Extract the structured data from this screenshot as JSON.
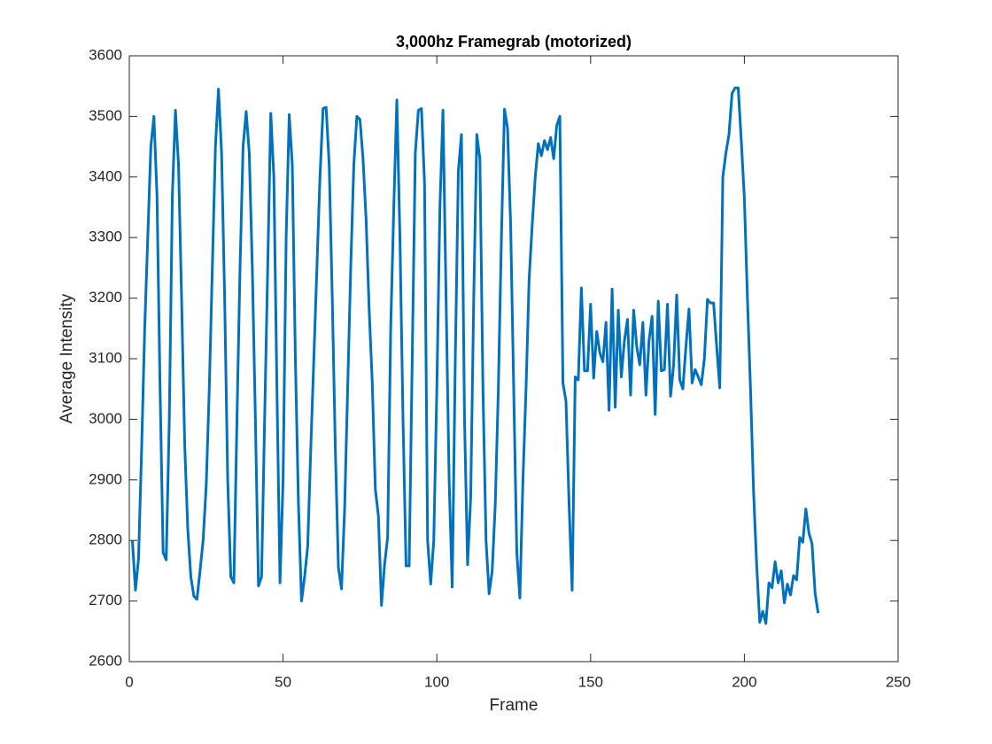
{
  "chart_data": {
    "type": "line",
    "title": "3,000hz Framegrab (motorized)",
    "x_label": "Frame",
    "y_label": "Average Intensity",
    "xlim": [
      0,
      250
    ],
    "xticks": [
      0,
      50,
      100,
      150,
      200,
      250
    ],
    "ylim": [
      2600,
      3600
    ],
    "yticks": [
      2600,
      2700,
      2800,
      2900,
      3000,
      3100,
      3200,
      3300,
      3400,
      3500,
      3600
    ],
    "grid": false,
    "x": [
      1,
      2,
      3,
      4,
      5,
      6,
      7,
      8,
      9,
      10,
      11,
      12,
      13,
      14,
      15,
      16,
      17,
      18,
      19,
      20,
      21,
      22,
      23,
      24,
      25,
      26,
      27,
      28,
      29,
      30,
      31,
      32,
      33,
      34,
      35,
      36,
      37,
      38,
      39,
      40,
      41,
      42,
      43,
      44,
      45,
      46,
      47,
      48,
      49,
      50,
      51,
      52,
      53,
      54,
      55,
      56,
      57,
      58,
      59,
      60,
      61,
      62,
      63,
      64,
      65,
      66,
      67,
      68,
      69,
      70,
      71,
      72,
      73,
      74,
      75,
      76,
      77,
      78,
      79,
      80,
      81,
      82,
      83,
      84,
      85,
      86,
      87,
      88,
      89,
      90,
      91,
      92,
      93,
      94,
      95,
      96,
      97,
      98,
      99,
      100,
      101,
      102,
      103,
      104,
      105,
      106,
      107,
      108,
      109,
      110,
      111,
      112,
      113,
      114,
      115,
      116,
      117,
      118,
      119,
      120,
      121,
      122,
      123,
      124,
      125,
      126,
      127,
      128,
      129,
      130,
      131,
      132,
      133,
      134,
      135,
      136,
      137,
      138,
      139,
      140,
      141,
      142,
      143,
      144,
      145,
      146,
      147,
      148,
      149,
      150,
      151,
      152,
      153,
      154,
      155,
      156,
      157,
      158,
      159,
      160,
      161,
      162,
      163,
      164,
      165,
      166,
      167,
      168,
      169,
      170,
      171,
      172,
      173,
      174,
      175,
      176,
      177,
      178,
      179,
      180,
      181,
      182,
      183,
      184,
      185,
      186,
      187,
      188,
      189,
      190,
      191,
      192,
      193,
      194,
      195,
      196,
      197,
      198,
      199,
      200,
      201,
      202,
      203,
      204,
      205,
      206,
      207,
      208,
      209,
      210,
      211,
      212,
      213,
      214,
      215,
      216,
      217,
      218,
      219,
      220,
      221,
      222,
      223,
      224
    ],
    "series": [
      {
        "color": "#0072bd",
        "values": [
          2800,
          2718,
          2770,
          2950,
          3150,
          3300,
          3450,
          3500,
          3370,
          3050,
          2780,
          2768,
          3000,
          3370,
          3510,
          3420,
          3200,
          2960,
          2820,
          2740,
          2708,
          2703,
          2750,
          2800,
          2890,
          3050,
          3250,
          3450,
          3545,
          3440,
          3200,
          2900,
          2740,
          2730,
          3000,
          3250,
          3450,
          3508,
          3440,
          3250,
          3000,
          2725,
          2740,
          3000,
          3250,
          3505,
          3400,
          3050,
          2730,
          2900,
          3300,
          3503,
          3420,
          3100,
          2860,
          2700,
          2740,
          2790,
          2950,
          3100,
          3250,
          3400,
          3513,
          3515,
          3420,
          3200,
          2950,
          2755,
          2720,
          2850,
          3050,
          3250,
          3420,
          3500,
          3495,
          3430,
          3330,
          3180,
          3060,
          2885,
          2840,
          2693,
          2760,
          2805,
          3150,
          3350,
          3527,
          3300,
          3000,
          2758,
          2758,
          3100,
          3440,
          3510,
          3513,
          3390,
          2800,
          2728,
          2800,
          3050,
          3350,
          3510,
          3200,
          2900,
          2723,
          3100,
          3410,
          3470,
          3000,
          2760,
          2870,
          3200,
          3470,
          3430,
          3050,
          2800,
          2712,
          2750,
          2860,
          3050,
          3300,
          3512,
          3480,
          3320,
          3050,
          2780,
          2705,
          2900,
          3050,
          3230,
          3320,
          3400,
          3455,
          3435,
          3460,
          3445,
          3465,
          3430,
          3485,
          3500,
          3060,
          3030,
          2860,
          2718,
          3070,
          3065,
          3217,
          3080,
          3080,
          3190,
          3068,
          3145,
          3110,
          3095,
          3160,
          3015,
          3215,
          3020,
          3180,
          3070,
          3130,
          3165,
          3040,
          3180,
          3120,
          3090,
          3160,
          3040,
          3130,
          3170,
          3008,
          3195,
          3080,
          3082,
          3190,
          3038,
          3090,
          3205,
          3065,
          3050,
          3120,
          3182,
          3060,
          3082,
          3070,
          3057,
          3100,
          3198,
          3192,
          3192,
          3120,
          3052,
          3400,
          3440,
          3470,
          3538,
          3547,
          3547,
          3460,
          3365,
          3200,
          3050,
          2880,
          2760,
          2665,
          2683,
          2663,
          2730,
          2722,
          2765,
          2730,
          2750,
          2697,
          2728,
          2710,
          2742,
          2735,
          2805,
          2797,
          2852,
          2812,
          2795,
          2713,
          2680
        ]
      }
    ]
  }
}
